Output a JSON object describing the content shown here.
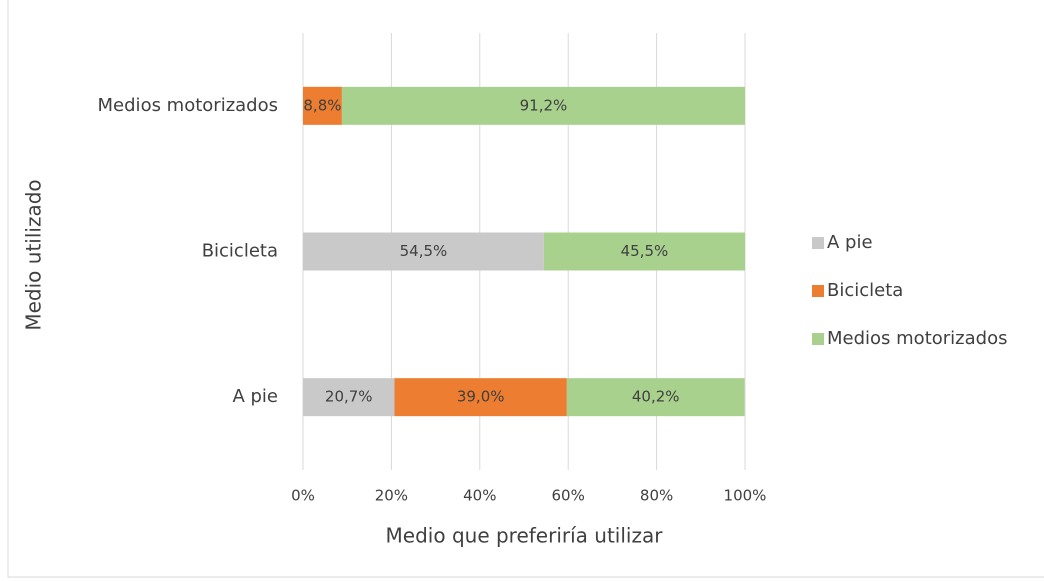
{
  "chart_data": {
    "type": "stacked-bar-horizontal",
    "x_label": "Medio que preferiría utilizar",
    "y_label": "Medio utilizado",
    "categories": [
      "A pie",
      "Bicicleta",
      "Medios motorizados"
    ],
    "series": [
      {
        "name": "A pie",
        "color": "#c9c9c9",
        "values": [
          20.7,
          54.5,
          0
        ],
        "value_labels": [
          "20,7%",
          "54,5%",
          null
        ]
      },
      {
        "name": "Bicicleta",
        "color": "#ed7d31",
        "values": [
          39.0,
          0,
          8.8
        ],
        "value_labels": [
          "39,0%",
          null,
          "8,8%"
        ]
      },
      {
        "name": "Medios motorizados",
        "color": "#a9d18e",
        "values": [
          40.2,
          45.5,
          91.2
        ],
        "value_labels": [
          "40,2%",
          "45,5%",
          "91,2%"
        ]
      }
    ],
    "xlim": [
      0,
      100
    ],
    "xticks": [
      {
        "value": 0,
        "label": "0%"
      },
      {
        "value": 20,
        "label": "20%"
      },
      {
        "value": 40,
        "label": "40%"
      },
      {
        "value": 60,
        "label": "60%"
      },
      {
        "value": 80,
        "label": "80%"
      },
      {
        "value": 100,
        "label": "100%"
      }
    ],
    "grid": true,
    "legend": "right"
  }
}
